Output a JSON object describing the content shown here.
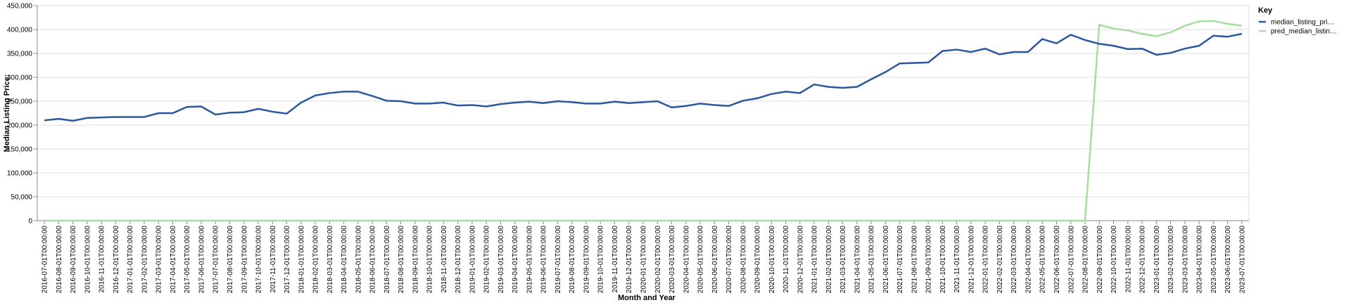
{
  "chart_data": {
    "type": "line",
    "xlabel": "Month and Year",
    "ylabel": "Median Listing Price:",
    "ylim": [
      0,
      450000
    ],
    "y_ticks": [
      "0",
      "50,000",
      "100,000",
      "150,000",
      "200,000",
      "250,000",
      "300,000",
      "350,000",
      "400,000",
      "450,000"
    ],
    "grid": true,
    "legend": {
      "title": "Key",
      "placement": "top-right",
      "entries": [
        "median_listing_pri…",
        "pred_median_listin…"
      ]
    },
    "x": [
      "2016-07-01T00:00:00",
      "2016-08-01T00:00:00",
      "2016-09-01T00:00:00",
      "2016-10-01T00:00:00",
      "2016-11-01T00:00:00",
      "2016-12-01T00:00:00",
      "2017-01-01T00:00:00",
      "2017-02-01T00:00:00",
      "2017-03-01T00:00:00",
      "2017-04-01T00:00:00",
      "2017-05-01T00:00:00",
      "2017-06-01T00:00:00",
      "2017-07-01T00:00:00",
      "2017-08-01T00:00:00",
      "2017-09-01T00:00:00",
      "2017-10-01T00:00:00",
      "2017-11-01T00:00:00",
      "2017-12-01T00:00:00",
      "2018-01-01T00:00:00",
      "2018-02-01T00:00:00",
      "2018-03-01T00:00:00",
      "2018-04-01T00:00:00",
      "2018-05-01T00:00:00",
      "2018-06-01T00:00:00",
      "2018-07-01T00:00:00",
      "2018-08-01T00:00:00",
      "2018-09-01T00:00:00",
      "2018-10-01T00:00:00",
      "2018-11-01T00:00:00",
      "2018-12-01T00:00:00",
      "2019-01-01T00:00:00",
      "2019-02-01T00:00:00",
      "2019-03-01T00:00:00",
      "2019-04-01T00:00:00",
      "2019-05-01T00:00:00",
      "2019-06-01T00:00:00",
      "2019-07-01T00:00:00",
      "2019-08-01T00:00:00",
      "2019-09-01T00:00:00",
      "2019-10-01T00:00:00",
      "2019-11-01T00:00:00",
      "2019-12-01T00:00:00",
      "2020-01-01T00:00:00",
      "2020-02-01T00:00:00",
      "2020-03-01T00:00:00",
      "2020-04-01T00:00:00",
      "2020-05-01T00:00:00",
      "2020-06-01T00:00:00",
      "2020-07-01T00:00:00",
      "2020-08-01T00:00:00",
      "2020-09-01T00:00:00",
      "2020-10-01T00:00:00",
      "2020-11-01T00:00:00",
      "2020-12-01T00:00:00",
      "2021-01-01T00:00:00",
      "2021-02-01T00:00:00",
      "2021-03-01T00:00:00",
      "2021-04-01T00:00:00",
      "2021-05-01T00:00:00",
      "2021-06-01T00:00:00",
      "2021-07-01T00:00:00",
      "2021-08-01T00:00:00",
      "2021-09-01T00:00:00",
      "2021-10-01T00:00:00",
      "2021-11-01T00:00:00",
      "2021-12-01T00:00:00",
      "2022-01-01T00:00:00",
      "2022-02-01T00:00:00",
      "2022-03-01T00:00:00",
      "2022-04-01T00:00:00",
      "2022-05-01T00:00:00",
      "2022-06-01T00:00:00",
      "2022-07-01T00:00:00",
      "2022-08-01T00:00:00",
      "2022-09-01T00:00:00",
      "2022-10-01T00:00:00",
      "2022-11-01T00:00:00",
      "2022-12-01T00:00:00",
      "2023-01-01T00:00:00",
      "2023-02-01T00:00:00",
      "2023-03-01T00:00:00",
      "2023-04-01T00:00:00",
      "2023-05-01T00:00:00",
      "2023-06-01T00:00:00",
      "2023-07-01T00:00:00"
    ],
    "series": [
      {
        "name": "median_listing_pri…",
        "color": "#2b56a0",
        "values": [
          210000,
          213000,
          209000,
          215000,
          216000,
          217000,
          217000,
          217000,
          225000,
          225000,
          238000,
          239000,
          222000,
          226000,
          227000,
          234000,
          228000,
          224000,
          247000,
          262000,
          267000,
          270000,
          270000,
          261000,
          251000,
          250000,
          245000,
          245000,
          247000,
          241000,
          242000,
          239000,
          244000,
          247000,
          249000,
          246000,
          250000,
          248000,
          245000,
          245000,
          249000,
          246000,
          248000,
          250000,
          237000,
          240000,
          245000,
          242000,
          240000,
          251000,
          256000,
          265000,
          270000,
          267000,
          285000,
          280000,
          278000,
          280000,
          296000,
          311000,
          329000,
          330000,
          331000,
          355000,
          358000,
          353000,
          360000,
          348000,
          353000,
          353000,
          380000,
          371000,
          389000,
          378000,
          370000,
          366000,
          359000,
          360000,
          347000,
          351000,
          360000,
          366000,
          387000,
          385000,
          391000
        ]
      },
      {
        "name": "pred_median_listin…",
        "color": "#a6dda0",
        "values": [
          0,
          0,
          0,
          0,
          0,
          0,
          0,
          0,
          0,
          0,
          0,
          0,
          0,
          0,
          0,
          0,
          0,
          0,
          0,
          0,
          0,
          0,
          0,
          0,
          0,
          0,
          0,
          0,
          0,
          0,
          0,
          0,
          0,
          0,
          0,
          0,
          0,
          0,
          0,
          0,
          0,
          0,
          0,
          0,
          0,
          0,
          0,
          0,
          0,
          0,
          0,
          0,
          0,
          0,
          0,
          0,
          0,
          0,
          0,
          0,
          0,
          0,
          0,
          0,
          0,
          0,
          0,
          0,
          0,
          0,
          0,
          0,
          0,
          0,
          410000,
          402000,
          398000,
          391000,
          386000,
          394000,
          408000,
          417000,
          418000,
          412000,
          408000
        ]
      }
    ]
  }
}
